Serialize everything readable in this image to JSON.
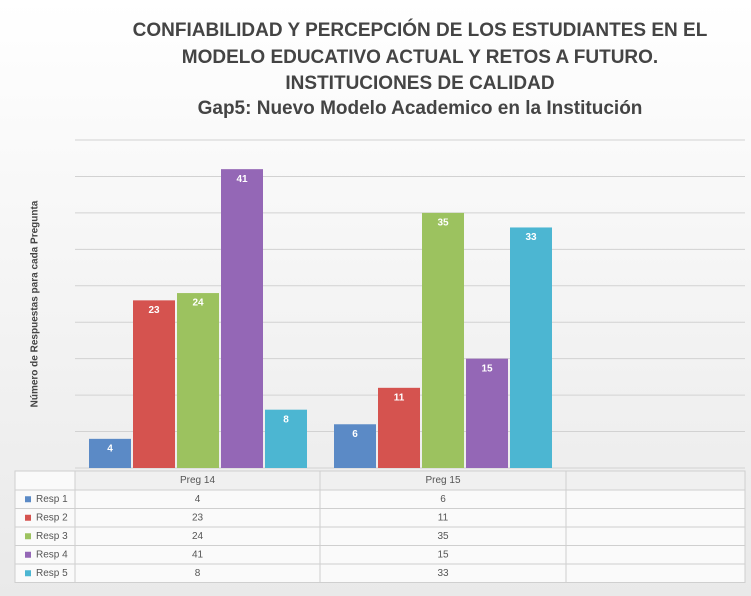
{
  "chart_data": {
    "type": "bar",
    "title": [
      "CONFIABILIDAD Y PERCEPCIÓN DE LOS ESTUDIANTES EN EL",
      "MODELO EDUCATIVO ACTUAL Y RETOS A FUTURO.",
      "INSTITUCIONES DE CALIDAD"
    ],
    "subtitle": "Gap5: Nuevo Modelo Academico en la Institución",
    "y_label": "Número de Respuestas para cada Pregunta",
    "categories": [
      "Preg 14",
      "Preg 15",
      null
    ],
    "series": [
      {
        "name": "Resp 1",
        "color": "#5b8ac6",
        "values": [
          4,
          6,
          null
        ]
      },
      {
        "name": "Resp 2",
        "color": "#d5534f",
        "values": [
          23,
          11,
          null
        ]
      },
      {
        "name": "Resp 3",
        "color": "#9cc25f",
        "values": [
          24,
          35,
          null
        ]
      },
      {
        "name": "Resp 4",
        "color": "#9467b6",
        "values": [
          41,
          15,
          null
        ]
      },
      {
        "name": "Resp 5",
        "color": "#4cb6d2",
        "values": [
          8,
          33,
          null
        ]
      }
    ],
    "ylim": [
      0,
      45
    ],
    "yticks": [
      0,
      5,
      10,
      15,
      20,
      25,
      30,
      35,
      40,
      45
    ],
    "grid": true,
    "show_tick_labels": false
  }
}
